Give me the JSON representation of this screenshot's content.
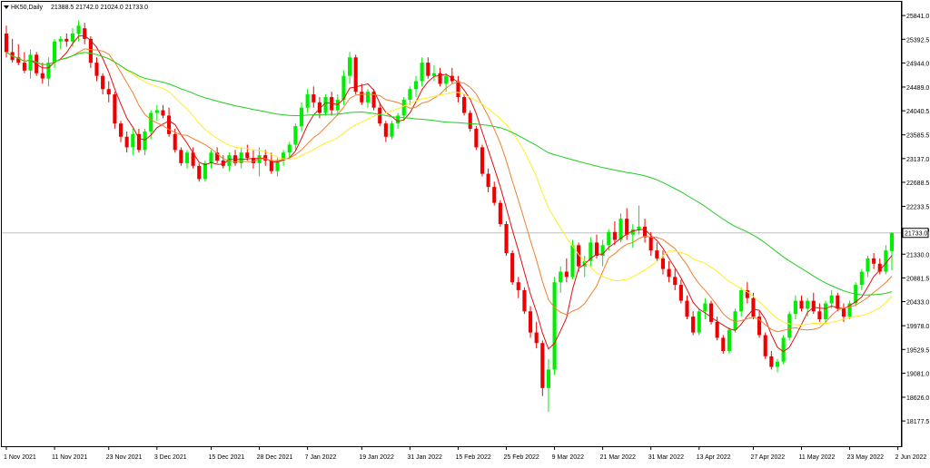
{
  "header": {
    "symbol_label": "HK50,Daily",
    "ohlc_label": "21388.5 21742.0 21024.0 21733.0"
  },
  "colors": {
    "background": "#ffffff",
    "frame": "#000000",
    "bull": "#00ee00",
    "bear": "#ee0000",
    "ma_fast": "#e01010",
    "ma_mid": "#f08030",
    "ma_slow": "#ffee22",
    "ma_long": "#22cc22",
    "price_line": "#c0c0c0",
    "text": "#000000"
  },
  "chart_data": {
    "type": "candlestick",
    "ylim": [
      17700,
      26100
    ],
    "y_ticks": [
      "25841.0",
      "25392.5",
      "24944.0",
      "24489.0",
      "24040.5",
      "23585.5",
      "23137.0",
      "22688.5",
      "22233.5",
      "21785.0",
      "21330.0",
      "20881.5",
      "20433.0",
      "19978.0",
      "19529.5",
      "19081.0",
      "18626.0",
      "18177.5"
    ],
    "x_ticks": [
      {
        "label": "1 Nov 2021",
        "index": 0
      },
      {
        "label": "11 Nov 2021",
        "index": 8
      },
      {
        "label": "23 Nov 2021",
        "index": 17
      },
      {
        "label": "3 Dec 2021",
        "index": 25
      },
      {
        "label": "15 Dec 2021",
        "index": 34
      },
      {
        "label": "28 Dec 2021",
        "index": 42
      },
      {
        "label": "7 Jan 2022",
        "index": 50
      },
      {
        "label": "19 Jan 2022",
        "index": 59
      },
      {
        "label": "31 Jan 2022",
        "index": 67
      },
      {
        "label": "15 Feb 2022",
        "index": 75
      },
      {
        "label": "25 Feb 2022",
        "index": 83
      },
      {
        "label": "9 Mar 2022",
        "index": 91
      },
      {
        "label": "21 Mar 2022",
        "index": 99
      },
      {
        "label": "31 Mar 2022",
        "index": 107
      },
      {
        "label": "13 Apr 2022",
        "index": 115
      },
      {
        "label": "27 Apr 2022",
        "index": 124
      },
      {
        "label": "11 May 2022",
        "index": 132
      },
      {
        "label": "23 May 2022",
        "index": 140
      },
      {
        "label": "2 Jun 2022",
        "index": 148
      }
    ],
    "current_price": 21733.0,
    "current_price_label": "21733.0",
    "candles": [
      [
        25500,
        25650,
        25050,
        25150
      ],
      [
        25150,
        25400,
        24950,
        25000
      ],
      [
        25050,
        25300,
        24900,
        24950
      ],
      [
        24950,
        25150,
        24750,
        24800
      ],
      [
        24800,
        25200,
        24650,
        25100
      ],
      [
        25100,
        25150,
        24700,
        24750
      ],
      [
        24750,
        24950,
        24550,
        24650
      ],
      [
        24650,
        25050,
        24500,
        24950
      ],
      [
        24950,
        25400,
        24850,
        25350
      ],
      [
        25350,
        25450,
        25200,
        25400
      ],
      [
        25400,
        25500,
        25250,
        25350
      ],
      [
        25350,
        25600,
        25250,
        25500
      ],
      [
        25500,
        25750,
        25350,
        25650
      ],
      [
        25600,
        25700,
        25300,
        25400
      ],
      [
        25400,
        25450,
        24850,
        24950
      ],
      [
        24950,
        25050,
        24600,
        24700
      ],
      [
        24700,
        24750,
        24350,
        24450
      ],
      [
        24450,
        24600,
        24200,
        24350
      ],
      [
        24350,
        24400,
        23700,
        23800
      ],
      [
        23800,
        23850,
        23450,
        23550
      ],
      [
        23550,
        23650,
        23250,
        23350
      ],
      [
        23350,
        23700,
        23200,
        23600
      ],
      [
        23600,
        23700,
        23250,
        23300
      ],
      [
        23300,
        23700,
        23200,
        23650
      ],
      [
        23650,
        24050,
        23500,
        24000
      ],
      [
        24000,
        24150,
        23850,
        24050
      ],
      [
        24050,
        24150,
        23900,
        23950
      ],
      [
        23950,
        24100,
        23550,
        23600
      ],
      [
        23600,
        23700,
        23250,
        23300
      ],
      [
        23300,
        23350,
        23000,
        23050
      ],
      [
        23050,
        23300,
        22950,
        23250
      ],
      [
        23250,
        23350,
        22950,
        23000
      ],
      [
        23000,
        23050,
        22700,
        22750
      ],
      [
        22750,
        23100,
        22700,
        23050
      ],
      [
        23050,
        23300,
        22950,
        23250
      ],
      [
        23250,
        23350,
        23050,
        23100
      ],
      [
        23100,
        23200,
        22950,
        23000
      ],
      [
        23000,
        23250,
        22900,
        23200
      ],
      [
        23200,
        23300,
        23000,
        23050
      ],
      [
        23050,
        23350,
        22950,
        23250
      ],
      [
        23250,
        23400,
        23100,
        23150
      ],
      [
        23150,
        23300,
        22950,
        23050
      ],
      [
        23050,
        23350,
        22800,
        23200
      ],
      [
        23200,
        23300,
        23000,
        23100
      ],
      [
        23100,
        23250,
        22850,
        22900
      ],
      [
        22900,
        23150,
        22800,
        23100
      ],
      [
        23100,
        23300,
        23000,
        23250
      ],
      [
        23250,
        23450,
        23150,
        23400
      ],
      [
        23400,
        23800,
        23300,
        23750
      ],
      [
        23750,
        24200,
        23650,
        24100
      ],
      [
        24100,
        24450,
        24000,
        24350
      ],
      [
        24350,
        24500,
        24100,
        24200
      ],
      [
        24200,
        24300,
        23900,
        24000
      ],
      [
        24000,
        24350,
        23950,
        24300
      ],
      [
        24300,
        24400,
        23950,
        24050
      ],
      [
        24050,
        24350,
        23950,
        24250
      ],
      [
        24250,
        24800,
        24150,
        24700
      ],
      [
        24700,
        25150,
        24550,
        25050
      ],
      [
        25050,
        25100,
        24350,
        24400
      ],
      [
        24400,
        24550,
        24150,
        24200
      ],
      [
        24200,
        24450,
        24100,
        24400
      ],
      [
        24400,
        24450,
        24050,
        24100
      ],
      [
        24100,
        24200,
        23750,
        23800
      ],
      [
        23800,
        23850,
        23450,
        23550
      ],
      [
        23550,
        23850,
        23500,
        23800
      ],
      [
        23800,
        24000,
        23700,
        23950
      ],
      [
        23950,
        24300,
        23850,
        24250
      ],
      [
        24250,
        24500,
        24150,
        24450
      ],
      [
        24450,
        24700,
        24300,
        24600
      ],
      [
        24600,
        25050,
        24500,
        24950
      ],
      [
        24950,
        25050,
        24650,
        24700
      ],
      [
        24700,
        24900,
        24600,
        24750
      ],
      [
        24750,
        24850,
        24500,
        24550
      ],
      [
        24550,
        24750,
        24400,
        24700
      ],
      [
        24700,
        24850,
        24550,
        24600
      ],
      [
        24600,
        24700,
        24200,
        24300
      ],
      [
        24300,
        24350,
        23950,
        24000
      ],
      [
        24000,
        24050,
        23650,
        23700
      ],
      [
        23700,
        23750,
        23300,
        23350
      ],
      [
        23350,
        23400,
        22800,
        22850
      ],
      [
        22850,
        22950,
        22500,
        22600
      ],
      [
        22600,
        22700,
        22250,
        22300
      ],
      [
        22300,
        22350,
        21850,
        21900
      ],
      [
        21900,
        21950,
        21300,
        21350
      ],
      [
        21350,
        21400,
        20750,
        20800
      ],
      [
        20800,
        20900,
        20500,
        20650
      ],
      [
        20650,
        20700,
        20200,
        20250
      ],
      [
        20250,
        20350,
        19750,
        19850
      ],
      [
        19850,
        20050,
        19550,
        19650
      ],
      [
        19650,
        19700,
        18650,
        18800
      ],
      [
        18800,
        19350,
        18350,
        19150
      ],
      [
        19150,
        20900,
        19050,
        20800
      ],
      [
        20800,
        21100,
        20600,
        21000
      ],
      [
        21000,
        21250,
        20800,
        20900
      ],
      [
        20900,
        21600,
        20850,
        21500
      ],
      [
        21500,
        21550,
        21000,
        21100
      ],
      [
        21100,
        21300,
        20900,
        21200
      ],
      [
        21200,
        21650,
        21100,
        21550
      ],
      [
        21550,
        21700,
        21250,
        21300
      ],
      [
        21300,
        21600,
        21100,
        21500
      ],
      [
        21500,
        21800,
        21400,
        21750
      ],
      [
        21750,
        21950,
        21500,
        21600
      ],
      [
        21600,
        22100,
        21550,
        22000
      ],
      [
        22000,
        22200,
        21600,
        21700
      ],
      [
        21700,
        21900,
        21450,
        21800
      ],
      [
        21800,
        22250,
        21700,
        21850
      ],
      [
        21850,
        22000,
        21550,
        21650
      ],
      [
        21650,
        21750,
        21300,
        21400
      ],
      [
        21400,
        21550,
        21200,
        21250
      ],
      [
        21250,
        21400,
        20950,
        21050
      ],
      [
        21050,
        21200,
        20800,
        20900
      ],
      [
        20900,
        21050,
        20650,
        20750
      ],
      [
        20750,
        20850,
        20400,
        20450
      ],
      [
        20450,
        20550,
        20100,
        20150
      ],
      [
        20150,
        20250,
        19800,
        19850
      ],
      [
        19850,
        20300,
        19800,
        20250
      ],
      [
        20250,
        20500,
        20100,
        20400
      ],
      [
        20400,
        20450,
        20000,
        20050
      ],
      [
        20050,
        20150,
        19700,
        19750
      ],
      [
        19750,
        19800,
        19450,
        19500
      ],
      [
        19500,
        19950,
        19450,
        19900
      ],
      [
        19900,
        20300,
        19850,
        20250
      ],
      [
        20250,
        20700,
        20150,
        20650
      ],
      [
        20650,
        20800,
        20400,
        20500
      ],
      [
        20500,
        20600,
        20100,
        20150
      ],
      [
        20150,
        20250,
        19750,
        19800
      ],
      [
        19800,
        19850,
        19350,
        19400
      ],
      [
        19400,
        19500,
        19150,
        19200
      ],
      [
        19200,
        19350,
        19100,
        19300
      ],
      [
        19300,
        19800,
        19250,
        19750
      ],
      [
        19750,
        20250,
        19700,
        20200
      ],
      [
        20200,
        20550,
        20100,
        20450
      ],
      [
        20450,
        20550,
        20250,
        20300
      ],
      [
        20300,
        20500,
        20150,
        20450
      ],
      [
        20450,
        20600,
        20200,
        20250
      ],
      [
        20250,
        20400,
        20050,
        20100
      ],
      [
        20100,
        20450,
        20050,
        20400
      ],
      [
        20400,
        20650,
        20300,
        20550
      ],
      [
        20550,
        20600,
        20250,
        20300
      ],
      [
        20300,
        20400,
        20050,
        20150
      ],
      [
        20150,
        20450,
        20100,
        20400
      ],
      [
        20400,
        20800,
        20350,
        20750
      ],
      [
        20750,
        21050,
        20650,
        21000
      ],
      [
        21000,
        21300,
        20900,
        21250
      ],
      [
        21250,
        21350,
        21050,
        21150
      ],
      [
        21150,
        21250,
        20950,
        21000
      ],
      [
        21000,
        21500,
        20950,
        21400
      ],
      [
        21388.5,
        21742.0,
        21024.0,
        21733.0
      ]
    ],
    "moving_averages": [
      {
        "period": 5
      },
      {
        "period": 10
      },
      {
        "period": 20
      },
      {
        "period": 60
      }
    ]
  }
}
